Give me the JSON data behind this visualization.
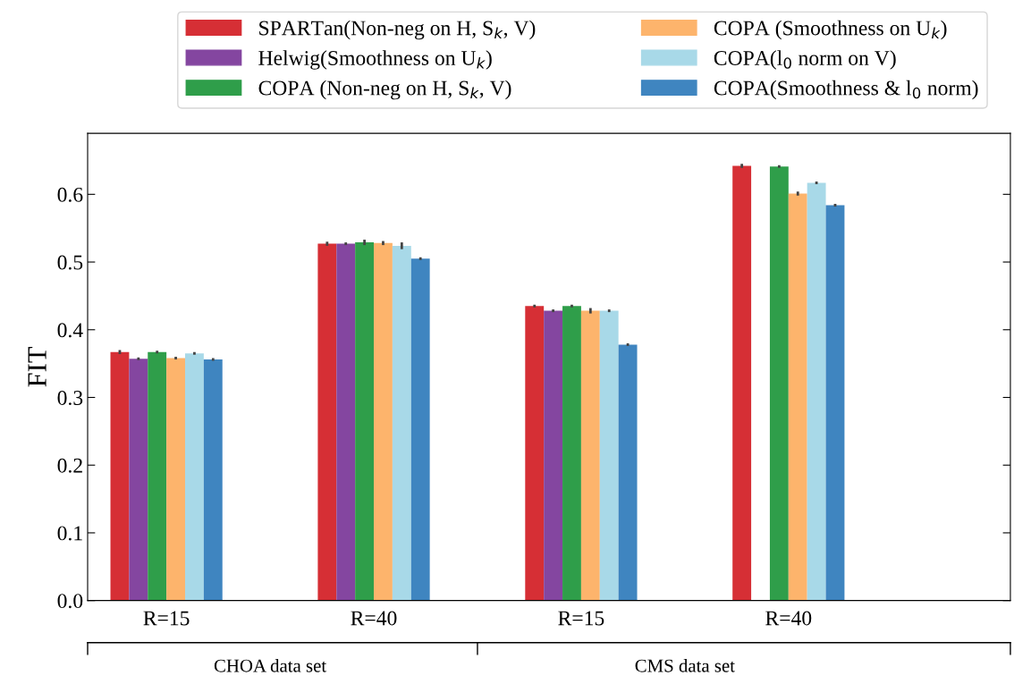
{
  "chart_data": {
    "type": "bar",
    "ylabel": "FIT",
    "categories": [
      "R=15",
      "R=40",
      "R=15",
      "R=40"
    ],
    "series": [
      {
        "name": "SPARTan(Non-neg on H, S$_{k}$, V)",
        "color": "#d62f35",
        "values": [
          0.367,
          0.527,
          0.435,
          0.642
        ],
        "errors": [
          0.003,
          0.003,
          0.002,
          0.003
        ]
      },
      {
        "name": "Helwig(Smoothness on U$_{k}$)",
        "color": "#8446a0",
        "values": [
          0.357,
          0.527,
          0.428,
          null
        ],
        "errors": [
          0.002,
          0.002,
          0.002,
          null
        ]
      },
      {
        "name": "COPA (Non-neg on H, S$_{k}$, V)",
        "color": "#2f9e4a",
        "values": [
          0.367,
          0.529,
          0.435,
          0.641
        ],
        "errors": [
          0.002,
          0.004,
          0.002,
          0.002
        ]
      },
      {
        "name": "COPA (Smoothness on U$_{k}$)",
        "color": "#fdb46c",
        "values": [
          0.358,
          0.528,
          0.428,
          0.601
        ],
        "errors": [
          0.002,
          0.003,
          0.004,
          0.003
        ]
      },
      {
        "name": "COPA(l$_{0}$ norm on V)",
        "color": "#a8d9e8",
        "values": [
          0.365,
          0.524,
          0.428,
          0.617
        ],
        "errors": [
          0.002,
          0.005,
          0.002,
          0.002
        ]
      },
      {
        "name": "COPA(Smoothness & l$_{0}$ norm)",
        "color": "#3f85c0",
        "values": [
          0.356,
          0.505,
          0.378,
          0.584
        ],
        "errors": [
          0.002,
          0.002,
          0.002,
          0.002
        ]
      }
    ],
    "ylim": [
      0,
      0.69
    ],
    "yticks": [
      {
        "value": 0,
        "label": "0.0"
      },
      0.1,
      0.2,
      0.3,
      0.4,
      0.5,
      0.6
    ],
    "legend": "top",
    "grid": false,
    "annotations": [
      "CHOA data set",
      "CMS data set"
    ]
  }
}
